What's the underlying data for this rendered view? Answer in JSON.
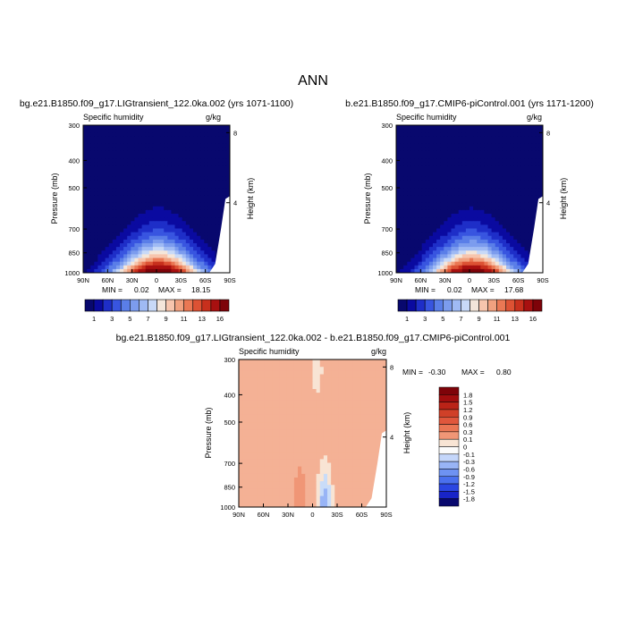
{
  "page_title": "ANN",
  "colors": {
    "positive": [
      "#f8e4d4",
      "#f7cdb7",
      "#f4b195",
      "#f09676",
      "#ea7654",
      "#e0573c",
      "#d04028",
      "#ba2317",
      "#a10d0e",
      "#7e0309"
    ],
    "negative": [
      "#08086e",
      "#0a0aa0",
      "#1824c8",
      "#2a46e2",
      "#4a70ee",
      "#6e92f2",
      "#98b4f6",
      "#c4d6fa",
      "#e4eefc",
      "#fbfbfb"
    ],
    "absolute": [
      "#08086e",
      "#0a0aa0",
      "#1e2ec8",
      "#3855e0",
      "#5a7ee8",
      "#7c9cee",
      "#9fbaf4",
      "#c8d9f7",
      "#f4e6da",
      "#f7c5ad",
      "#f1a17f",
      "#ea7854",
      "#dd5234",
      "#c8301d",
      "#a81010",
      "#7e0309"
    ]
  },
  "chart_data": [
    {
      "type": "contour",
      "title": "bg.e21.B1850.f09_g17.LIGtransient_122.0ka.002 (yrs 1071-1100)",
      "variable": "Specific humidity",
      "units": "g/kg",
      "ylabel": "Pressure (mb)",
      "y2label": "Height (km)",
      "x_ticks": [
        "90N",
        "60N",
        "30N",
        "0",
        "30S",
        "60S",
        "90S"
      ],
      "x_values": [
        90,
        60,
        30,
        0,
        -30,
        -60,
        -90
      ],
      "y_ticks": [
        "300",
        "400",
        "500",
        "700",
        "850",
        "1000"
      ],
      "y_values": [
        300,
        400,
        500,
        700,
        850,
        1000
      ],
      "y2_ticks": [
        "8",
        "4"
      ],
      "y2_values": [
        8,
        4
      ],
      "ylim": [
        300,
        1000
      ],
      "min_label": "MIN =",
      "min": "0.02",
      "max_label": "MAX =",
      "max": "18.15",
      "levels": [
        1,
        2,
        3,
        4,
        5,
        6,
        7,
        8,
        9,
        10,
        11,
        12,
        13,
        14,
        16
      ],
      "level_labels": [
        "1",
        "3",
        "5",
        "7",
        "9",
        "11",
        "13",
        "16"
      ]
    },
    {
      "type": "contour",
      "title": "b.e21.B1850.f09_g17.CMIP6-piControl.001 (yrs 1171-1200)",
      "variable": "Specific humidity",
      "units": "g/kg",
      "ylabel": "Pressure (mb)",
      "y2label": "Height (km)",
      "x_ticks": [
        "90N",
        "60N",
        "30N",
        "0",
        "30S",
        "60S",
        "90S"
      ],
      "x_values": [
        90,
        60,
        30,
        0,
        -30,
        -60,
        -90
      ],
      "y_ticks": [
        "300",
        "400",
        "500",
        "700",
        "850",
        "1000"
      ],
      "y_values": [
        300,
        400,
        500,
        700,
        850,
        1000
      ],
      "y2_ticks": [
        "8",
        "4"
      ],
      "y2_values": [
        8,
        4
      ],
      "ylim": [
        300,
        1000
      ],
      "min_label": "MIN =",
      "min": "0.02",
      "max_label": "MAX =",
      "max": "17.68",
      "levels": [
        1,
        2,
        3,
        4,
        5,
        6,
        7,
        8,
        9,
        10,
        11,
        12,
        13,
        14,
        16
      ],
      "level_labels": [
        "1",
        "3",
        "5",
        "7",
        "9",
        "11",
        "13",
        "16"
      ]
    },
    {
      "type": "contour",
      "title": "bg.e21.B1850.f09_g17.LIGtransient_122.0ka.002 - b.e21.B1850.f09_g17.CMIP6-piControl.001",
      "variable": "Specific humidity",
      "units": "g/kg",
      "ylabel": "Pressure (mb)",
      "y2label": "Height (km)",
      "x_ticks": [
        "90N",
        "60N",
        "30N",
        "0",
        "30S",
        "60S",
        "90S"
      ],
      "x_values": [
        90,
        60,
        30,
        0,
        -30,
        -60,
        -90
      ],
      "y_ticks": [
        "300",
        "400",
        "500",
        "700",
        "850",
        "1000"
      ],
      "y_values": [
        300,
        400,
        500,
        700,
        850,
        1000
      ],
      "y2_ticks": [
        "8",
        "4"
      ],
      "y2_values": [
        8,
        4
      ],
      "ylim": [
        300,
        1000
      ],
      "min_label": "MIN =",
      "min": "-0.30",
      "max_label": "MAX =",
      "max": "0.80",
      "level_labels": [
        "1.8",
        "1.5",
        "1.2",
        "0.9",
        "0.6",
        "0.3",
        "0.1",
        "0",
        "-0.1",
        "-0.3",
        "-0.6",
        "-0.9",
        "-1.2",
        "-1.5",
        "-1.8"
      ]
    }
  ]
}
